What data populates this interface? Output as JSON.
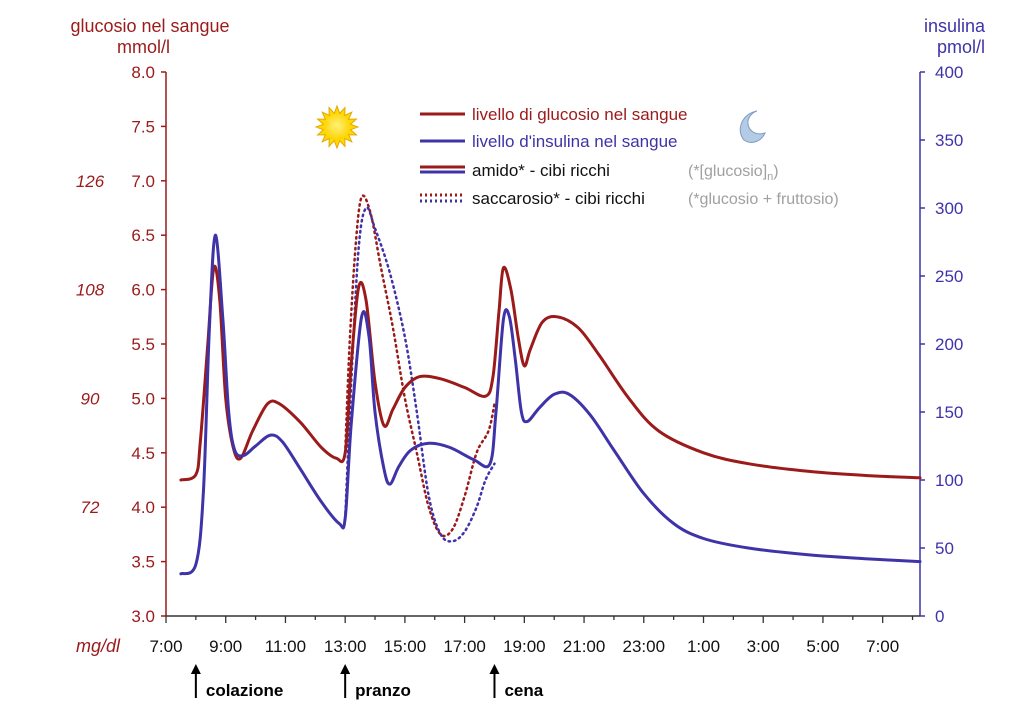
{
  "chart_data": {
    "type": "line",
    "left_axis": {
      "title_line1": "glucosio nel sangue",
      "title_line2": "mmol/l",
      "range": [
        3.0,
        8.0
      ],
      "ticks": [
        "3.0",
        "3.5",
        "4.0",
        "4.5",
        "5.0",
        "5.5",
        "6.0",
        "6.5",
        "7.0",
        "7.5",
        "8.0"
      ],
      "secondary_unit": "mg/dl",
      "secondary_ticks": [
        {
          "label": "72",
          "at": 4.0
        },
        {
          "label": "90",
          "at": 5.0
        },
        {
          "label": "108",
          "at": 6.0
        },
        {
          "label": "126",
          "at": 7.0
        }
      ]
    },
    "right_axis": {
      "title_line1": "insulina",
      "title_line2": "pmol/l",
      "range": [
        0,
        400
      ],
      "ticks": [
        "0",
        "50",
        "100",
        "150",
        "200",
        "250",
        "300",
        "350",
        "400"
      ]
    },
    "x_axis": {
      "range_hours": [
        7.0,
        32.25
      ],
      "ticks": [
        "7:00",
        "9:00",
        "11:00",
        "13:00",
        "15:00",
        "17:00",
        "19:00",
        "21:00",
        "23:00",
        "1:00",
        "3:00",
        "5:00",
        "7:00"
      ]
    },
    "meals": [
      {
        "label": "colazione",
        "time": 8.0
      },
      {
        "label": "pranzo",
        "time": 13.0
      },
      {
        "label": "cena",
        "time": 18.0
      }
    ],
    "legend": {
      "glucose_line": "livello di glucosio nel sangue",
      "insulin_line": "livello d'insulina nel sangue",
      "starch": "amido* - cibi ricchi",
      "starch_note": "(*[glucosio]",
      "starch_note_sub": "n",
      "starch_note_end": ")",
      "sucrose": "saccarosio* - cibi ricchi",
      "sucrose_note": "(*glucosio + fruttosio)"
    },
    "colors": {
      "glucose": "#9b1a1a",
      "insulin": "#3f33a8",
      "left_axis_text": "#9b1a1a",
      "right_axis_text": "#3f33a8",
      "note_gray": "#a0a0a0",
      "sun": "#ffd800",
      "moon": "#a9c4df"
    },
    "series": [
      {
        "id": "glucose",
        "axis": "left",
        "style": "solid",
        "points": [
          [
            7.5,
            4.25
          ],
          [
            8.0,
            4.3
          ],
          [
            8.15,
            4.6
          ],
          [
            8.4,
            5.5
          ],
          [
            8.6,
            6.2
          ],
          [
            8.8,
            5.9
          ],
          [
            9.0,
            5.0
          ],
          [
            9.25,
            4.55
          ],
          [
            9.5,
            4.45
          ],
          [
            9.9,
            4.7
          ],
          [
            10.4,
            4.95
          ],
          [
            10.8,
            4.95
          ],
          [
            11.5,
            4.78
          ],
          [
            12.2,
            4.55
          ],
          [
            12.7,
            4.45
          ],
          [
            13.0,
            4.5
          ],
          [
            13.2,
            5.3
          ],
          [
            13.45,
            6.02
          ],
          [
            13.7,
            5.9
          ],
          [
            14.0,
            5.15
          ],
          [
            14.3,
            4.75
          ],
          [
            14.6,
            4.9
          ],
          [
            15.0,
            5.1
          ],
          [
            15.5,
            5.2
          ],
          [
            16.2,
            5.18
          ],
          [
            17.0,
            5.1
          ],
          [
            17.7,
            5.02
          ],
          [
            17.95,
            5.2
          ],
          [
            18.15,
            5.8
          ],
          [
            18.3,
            6.2
          ],
          [
            18.55,
            6.0
          ],
          [
            18.8,
            5.55
          ],
          [
            19.0,
            5.3
          ],
          [
            19.2,
            5.45
          ],
          [
            19.6,
            5.7
          ],
          [
            20.1,
            5.75
          ],
          [
            20.8,
            5.65
          ],
          [
            21.5,
            5.4
          ],
          [
            22.5,
            5.0
          ],
          [
            23.5,
            4.7
          ],
          [
            25.0,
            4.5
          ],
          [
            26.5,
            4.4
          ],
          [
            28.5,
            4.33
          ],
          [
            30.5,
            4.29
          ],
          [
            32.25,
            4.27
          ]
        ]
      },
      {
        "id": "insulin",
        "axis": "right",
        "style": "solid",
        "points": [
          [
            7.5,
            31
          ],
          [
            8.0,
            38
          ],
          [
            8.25,
            90
          ],
          [
            8.45,
            210
          ],
          [
            8.65,
            280
          ],
          [
            8.9,
            220
          ],
          [
            9.1,
            150
          ],
          [
            9.3,
            122
          ],
          [
            9.6,
            118
          ],
          [
            10.0,
            125
          ],
          [
            10.5,
            133
          ],
          [
            10.9,
            128
          ],
          [
            11.5,
            108
          ],
          [
            12.2,
            84
          ],
          [
            12.8,
            68
          ],
          [
            13.0,
            72
          ],
          [
            13.2,
            140
          ],
          [
            13.55,
            220
          ],
          [
            13.8,
            205
          ],
          [
            14.0,
            150
          ],
          [
            14.3,
            108
          ],
          [
            14.5,
            97
          ],
          [
            14.8,
            110
          ],
          [
            15.2,
            122
          ],
          [
            15.8,
            127
          ],
          [
            16.5,
            124
          ],
          [
            17.3,
            115
          ],
          [
            17.85,
            112
          ],
          [
            18.05,
            150
          ],
          [
            18.3,
            218
          ],
          [
            18.5,
            220
          ],
          [
            18.7,
            188
          ],
          [
            18.9,
            150
          ],
          [
            19.1,
            143
          ],
          [
            19.5,
            153
          ],
          [
            20.0,
            163
          ],
          [
            20.5,
            163
          ],
          [
            21.2,
            148
          ],
          [
            22.0,
            122
          ],
          [
            23.0,
            90
          ],
          [
            24.0,
            68
          ],
          [
            25.0,
            57
          ],
          [
            26.5,
            50
          ],
          [
            28.5,
            45
          ],
          [
            30.5,
            42
          ],
          [
            32.25,
            40
          ]
        ]
      },
      {
        "id": "glucose_sucrose",
        "axis": "left",
        "style": "dotted",
        "points": [
          [
            13.0,
            4.5
          ],
          [
            13.15,
            5.5
          ],
          [
            13.35,
            6.4
          ],
          [
            13.55,
            6.85
          ],
          [
            13.85,
            6.7
          ],
          [
            14.2,
            6.2
          ],
          [
            14.6,
            5.65
          ],
          [
            15.0,
            5.0
          ],
          [
            15.4,
            4.5
          ],
          [
            15.8,
            4.0
          ],
          [
            16.2,
            3.75
          ],
          [
            16.6,
            3.8
          ],
          [
            17.0,
            4.1
          ],
          [
            17.4,
            4.5
          ],
          [
            17.8,
            4.7
          ],
          [
            18.0,
            4.95
          ]
        ]
      },
      {
        "id": "insulin_sucrose",
        "axis": "right",
        "style": "dotted",
        "points": [
          [
            13.0,
            72
          ],
          [
            13.2,
            170
          ],
          [
            13.45,
            270
          ],
          [
            13.7,
            300
          ],
          [
            14.0,
            285
          ],
          [
            14.5,
            252
          ],
          [
            15.0,
            205
          ],
          [
            15.4,
            150
          ],
          [
            15.8,
            88
          ],
          [
            16.2,
            60
          ],
          [
            16.6,
            55
          ],
          [
            17.0,
            62
          ],
          [
            17.4,
            80
          ],
          [
            17.7,
            100
          ],
          [
            18.0,
            112
          ]
        ]
      }
    ]
  }
}
